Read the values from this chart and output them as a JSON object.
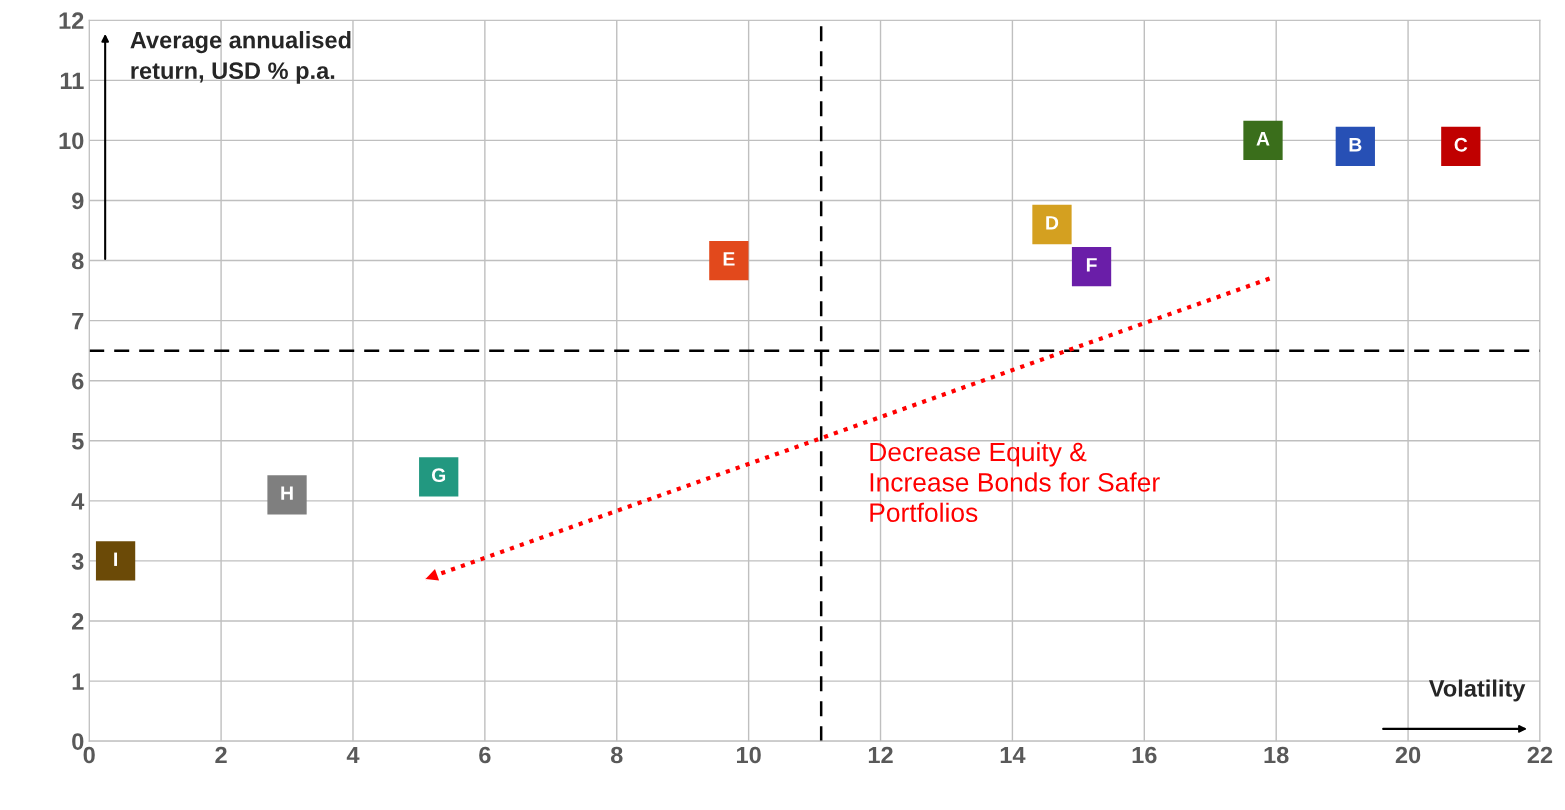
{
  "chart_data": {
    "type": "scatter",
    "xlabel": "Volatility",
    "ylabel": "Average annualised return, USD % p.a.",
    "xlim": [
      0,
      22
    ],
    "ylim": [
      0,
      12
    ],
    "xticks": [
      0,
      2,
      4,
      6,
      8,
      10,
      12,
      14,
      16,
      18,
      20,
      22
    ],
    "yticks": [
      0,
      1,
      2,
      3,
      4,
      5,
      6,
      7,
      8,
      9,
      10,
      11,
      12
    ],
    "grid": true,
    "legend": false,
    "marker": "square",
    "series": [
      {
        "name": "A",
        "color": "#3a6e1b",
        "x": [
          17.8
        ],
        "values": [
          10.0
        ]
      },
      {
        "name": "B",
        "color": "#2750b5",
        "x": [
          19.2
        ],
        "values": [
          9.9
        ]
      },
      {
        "name": "C",
        "color": "#c00000",
        "x": [
          20.8
        ],
        "values": [
          9.9
        ]
      },
      {
        "name": "D",
        "color": "#d4a020",
        "x": [
          14.6
        ],
        "values": [
          8.6
        ]
      },
      {
        "name": "E",
        "color": "#e2491c",
        "x": [
          9.7
        ],
        "values": [
          8.0
        ]
      },
      {
        "name": "F",
        "color": "#6a1ea8",
        "x": [
          15.2
        ],
        "values": [
          7.9
        ]
      },
      {
        "name": "G",
        "color": "#229880",
        "x": [
          5.3
        ],
        "values": [
          4.4
        ]
      },
      {
        "name": "H",
        "color": "#7f7f7f",
        "x": [
          3.0
        ],
        "values": [
          4.1
        ]
      },
      {
        "name": "I",
        "color": "#6b4a07",
        "x": [
          0.4
        ],
        "values": [
          3.0
        ]
      },
      {
        "type": "line",
        "color": "#ff0000",
        "line_style": "dotted",
        "marker": "none",
        "x": [
          17.9,
          5.1
        ],
        "values": [
          7.7,
          2.7
        ]
      }
    ],
    "ref_lines": [
      {
        "axis": "x",
        "value": 11.1,
        "color": "#000000",
        "line_style": "dashed"
      },
      {
        "axis": "y",
        "value": 6.5,
        "color": "#000000",
        "line_style": "dashed"
      }
    ],
    "annotations": [
      "Decrease Equity & Increase Bonds for Safer Portfolios"
    ]
  }
}
